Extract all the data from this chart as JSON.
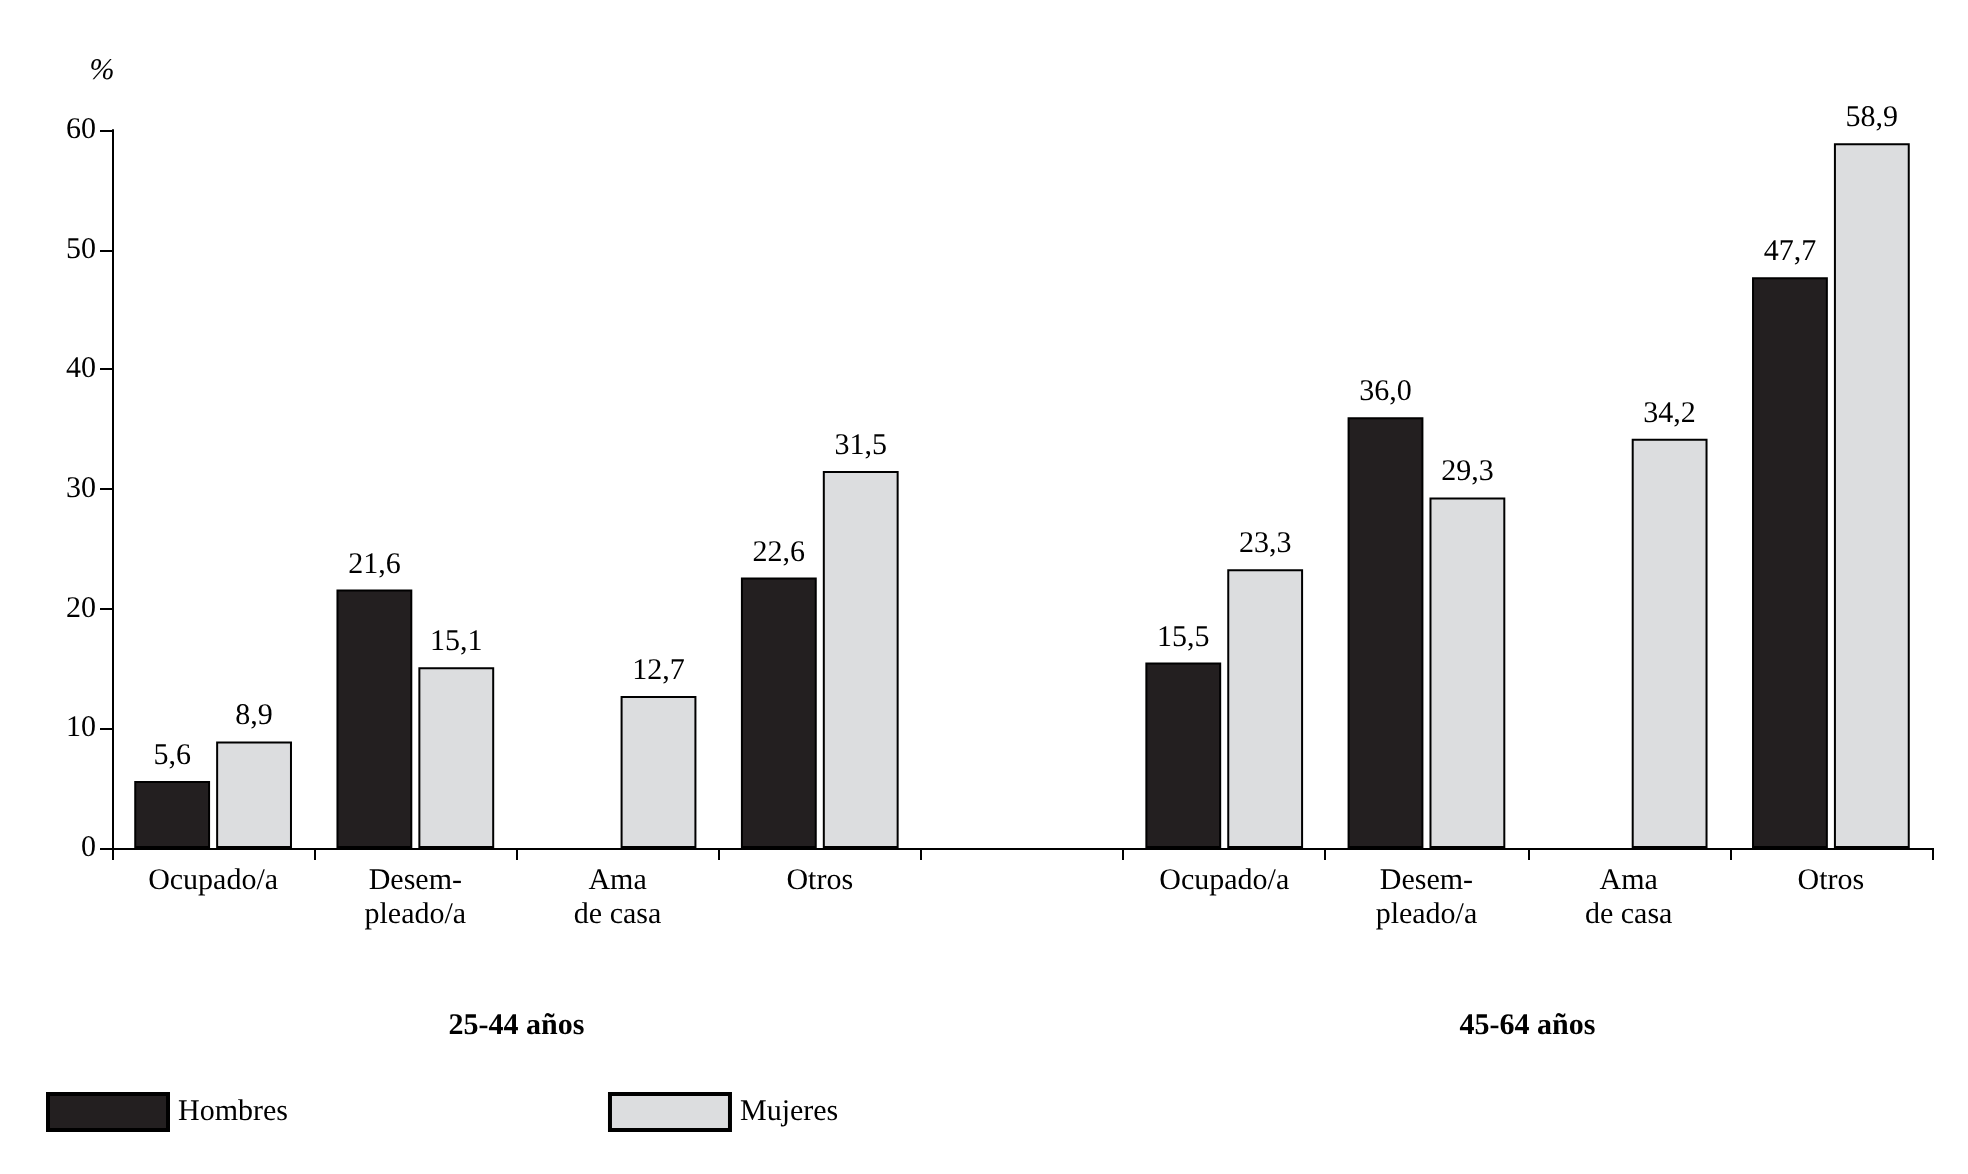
{
  "chart_data": {
    "type": "bar",
    "ylabel": "%",
    "categories": [
      "Ocupado/a",
      "Desem-\npleado/a",
      "Ama\nde casa",
      "Otros",
      null,
      "Ocupado/a",
      "Desem-\npleado/a",
      "Ama\nde casa",
      "Otros"
    ],
    "series": [
      {
        "name": "Hombres",
        "color": "#231f20",
        "values": [
          5.6,
          21.6,
          null,
          22.6,
          null,
          15.5,
          36.0,
          null,
          47.7
        ],
        "value_labels": [
          "5,6",
          "21,6",
          null,
          "22,6",
          null,
          "15,5",
          "36,0",
          null,
          "47,7"
        ]
      },
      {
        "name": "Mujeres",
        "color": "#dcdddf",
        "values": [
          8.9,
          15.1,
          12.7,
          31.5,
          null,
          23.3,
          29.3,
          34.2,
          58.9
        ],
        "value_labels": [
          "8,9",
          "15,1",
          "12,7",
          "31,5",
          null,
          "23,3",
          "29,3",
          "34,2",
          "58,9"
        ]
      }
    ],
    "ylim": [
      0,
      60
    ],
    "yticks": [
      0,
      10,
      20,
      30,
      40,
      50,
      60
    ],
    "grid": false,
    "legend": "bottom left",
    "annotations": [
      "25-44 años",
      "45-64 años"
    ]
  }
}
